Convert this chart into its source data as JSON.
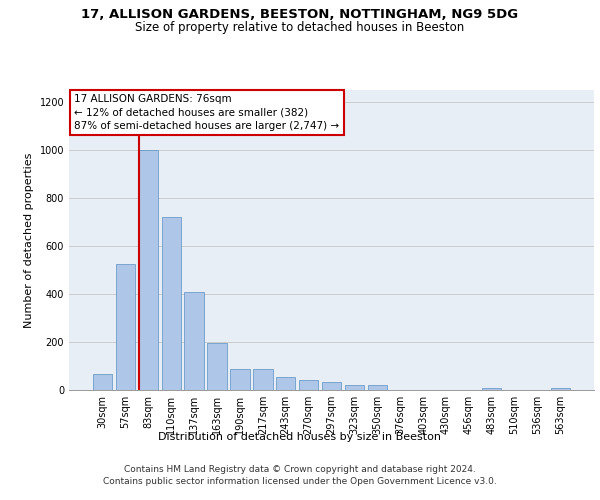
{
  "title1": "17, ALLISON GARDENS, BEESTON, NOTTINGHAM, NG9 5DG",
  "title2": "Size of property relative to detached houses in Beeston",
  "xlabel": "Distribution of detached houses by size in Beeston",
  "ylabel": "Number of detached properties",
  "categories": [
    "30sqm",
    "57sqm",
    "83sqm",
    "110sqm",
    "137sqm",
    "163sqm",
    "190sqm",
    "217sqm",
    "243sqm",
    "270sqm",
    "297sqm",
    "323sqm",
    "350sqm",
    "376sqm",
    "403sqm",
    "430sqm",
    "456sqm",
    "483sqm",
    "510sqm",
    "536sqm",
    "563sqm"
  ],
  "values": [
    65,
    525,
    1000,
    720,
    408,
    197,
    88,
    88,
    55,
    40,
    32,
    20,
    20,
    0,
    0,
    0,
    0,
    10,
    0,
    0,
    10
  ],
  "bar_color": "#aec6e8",
  "bar_edge_color": "#5a8fc2",
  "vline_color": "#cc0000",
  "annotation_text": "17 ALLISON GARDENS: 76sqm\n← 12% of detached houses are smaller (382)\n87% of semi-detached houses are larger (2,747) →",
  "annotation_box_color": "#ffffff",
  "annotation_box_edge": "#cc0000",
  "ylim": [
    0,
    1250
  ],
  "yticks": [
    0,
    200,
    400,
    600,
    800,
    1000,
    1200
  ],
  "grid_color": "#cccccc",
  "bg_color": "#e8eef5",
  "footer": "Contains HM Land Registry data © Crown copyright and database right 2024.\nContains public sector information licensed under the Open Government Licence v3.0.",
  "footer_fontsize": 6.5,
  "title1_fontsize": 9.5,
  "title2_fontsize": 8.5,
  "xlabel_fontsize": 8,
  "ylabel_fontsize": 8,
  "tick_fontsize": 7,
  "annot_fontsize": 7.5
}
